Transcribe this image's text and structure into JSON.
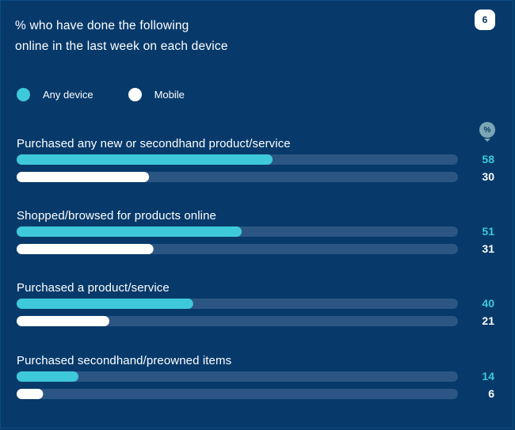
{
  "header": {
    "title_line1": "% who have done the following",
    "title_line2": "online in the last week on each device",
    "badge_icon": "brand-logo-icon",
    "badge_glyph": "6"
  },
  "legend": {
    "items": [
      {
        "label": "Any device",
        "color": "#3ec9da"
      },
      {
        "label": "Mobile",
        "color": "#ffffff"
      }
    ]
  },
  "unit_icon": "%",
  "colors": {
    "background": "#073a6a",
    "track": "#2b5683",
    "any_device": "#3ec9da",
    "mobile": "#ffffff"
  },
  "chart_data": {
    "type": "bar",
    "orientation": "horizontal",
    "title": "% who have done the following online in the last week on each device",
    "xlim": [
      0,
      100
    ],
    "legend_position": "top-left",
    "categories": [
      "Purchased any new or secondhand product/service",
      "Shopped/browsed for products online",
      "Purchased a product/service",
      "Purchased secondhand/preowned items"
    ],
    "series": [
      {
        "name": "Any device",
        "values": [
          58,
          51,
          40,
          14
        ]
      },
      {
        "name": "Mobile",
        "values": [
          30,
          31,
          21,
          6
        ]
      }
    ]
  }
}
